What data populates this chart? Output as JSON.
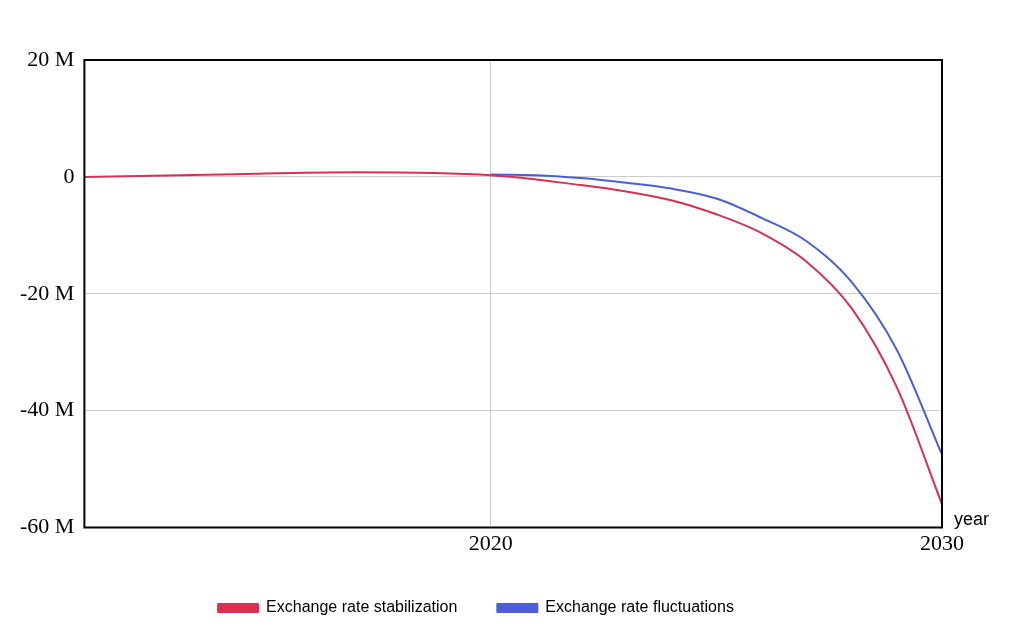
{
  "chart_data": {
    "type": "line",
    "xlabel": "year",
    "xlim": [
      2011,
      2030
    ],
    "xticks": [
      2020,
      2030
    ],
    "ylim": [
      -60,
      20
    ],
    "yticks": [
      {
        "value": 20,
        "label": "20 M"
      },
      0,
      {
        "value": -20,
        "label": "-20 M"
      },
      {
        "value": -40,
        "label": "-40 M"
      },
      {
        "value": -60,
        "label": "-60 M"
      }
    ],
    "grid": true,
    "legend": "bottom",
    "marker": "none",
    "line_style": "solid",
    "series": [
      {
        "name": "Exchange rate stabilization",
        "color": "#d9304f",
        "x": [
          2011,
          2014,
          2017,
          2020,
          2022,
          2023,
          2024,
          2025,
          2026,
          2027,
          2028,
          2029,
          2030
        ],
        "values": [
          0,
          0.4,
          0.8,
          0.3,
          -1.4,
          -2.5,
          -4,
          -6.4,
          -9.6,
          -14.5,
          -22.5,
          -36,
          -56
        ]
      },
      {
        "name": "Exchange rate fluctuations",
        "color": "#4a5fd6",
        "x": [
          2020,
          2021,
          2022,
          2023,
          2024,
          2025,
          2026,
          2027,
          2028,
          2029,
          2030
        ],
        "values": [
          0.4,
          0.3,
          -0.2,
          -1,
          -2,
          -3.7,
          -7,
          -11,
          -18,
          -29.6,
          -47.5
        ]
      }
    ]
  }
}
